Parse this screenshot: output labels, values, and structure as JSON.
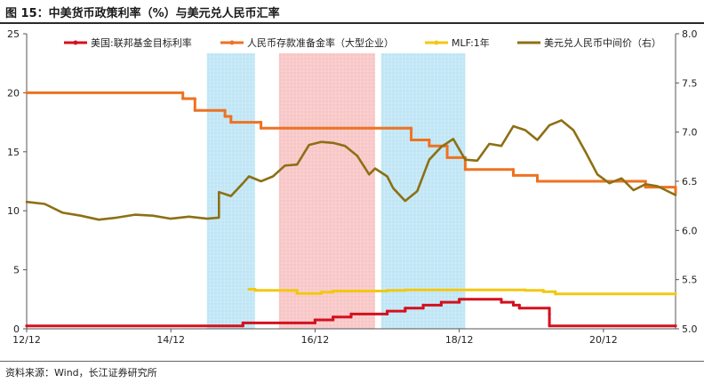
{
  "figure": {
    "title": "图 15：中美货币政策利率（%）与美元兑人民币汇率",
    "source": "资料来源：Wind，长江证券研究所"
  },
  "chart_data": {
    "type": "line",
    "x_tick_labels": [
      "12/12",
      "14/12",
      "16/12",
      "18/12",
      "20/12"
    ],
    "x_tick_dates": [
      "2012-12",
      "2014-12",
      "2016-12",
      "2018-12",
      "2020-12"
    ],
    "x_range": [
      "2012-12",
      "2021-12"
    ],
    "y_left": {
      "ylim": [
        0,
        25
      ],
      "ticks": [
        "0",
        "5",
        "10",
        "15",
        "20",
        "25"
      ]
    },
    "y_right": {
      "ylim": [
        5.0,
        8.0
      ],
      "ticks": [
        "5.0",
        "5.5",
        "6.0",
        "6.5",
        "7.0",
        "7.5",
        "8.0"
      ]
    },
    "legend_position": "top",
    "grid": false,
    "shaded_periods": [
      {
        "start": "2015-06",
        "end": "2016-02",
        "color": "#a9dcf2"
      },
      {
        "start": "2016-06",
        "end": "2017-10",
        "color": "#f6b2b2"
      },
      {
        "start": "2017-11",
        "end": "2019-01",
        "color": "#a9dcf2"
      }
    ],
    "series": [
      {
        "name": "美国:联邦基金目标利率",
        "color": "#d4101e",
        "axis": "left",
        "step": true,
        "points": [
          [
            "2012-12",
            0.25
          ],
          [
            "2015-12",
            0.25
          ],
          [
            "2015-12",
            0.5
          ],
          [
            "2016-12",
            0.5
          ],
          [
            "2016-12",
            0.75
          ],
          [
            "2017-03",
            0.75
          ],
          [
            "2017-03",
            1.0
          ],
          [
            "2017-06",
            1.0
          ],
          [
            "2017-06",
            1.25
          ],
          [
            "2017-12",
            1.25
          ],
          [
            "2017-12",
            1.5
          ],
          [
            "2018-03",
            1.5
          ],
          [
            "2018-03",
            1.75
          ],
          [
            "2018-06",
            1.75
          ],
          [
            "2018-06",
            2.0
          ],
          [
            "2018-09",
            2.0
          ],
          [
            "2018-09",
            2.25
          ],
          [
            "2018-12",
            2.25
          ],
          [
            "2018-12",
            2.5
          ],
          [
            "2019-07",
            2.5
          ],
          [
            "2019-07",
            2.25
          ],
          [
            "2019-09",
            2.25
          ],
          [
            "2019-09",
            2.0
          ],
          [
            "2019-10",
            2.0
          ],
          [
            "2019-10",
            1.75
          ],
          [
            "2020-03",
            1.75
          ],
          [
            "2020-03",
            1.25
          ],
          [
            "2020-03",
            0.25
          ],
          [
            "2021-12",
            0.25
          ]
        ]
      },
      {
        "name": "人民币存款准备金率（大型企业）",
        "color": "#ee7221",
        "axis": "left",
        "step": true,
        "points": [
          [
            "2012-12",
            20.0
          ],
          [
            "2015-02",
            20.0
          ],
          [
            "2015-02",
            19.5
          ],
          [
            "2015-04",
            19.5
          ],
          [
            "2015-04",
            18.5
          ],
          [
            "2015-09",
            18.5
          ],
          [
            "2015-09",
            18.0
          ],
          [
            "2015-10",
            18.0
          ],
          [
            "2015-10",
            17.5
          ],
          [
            "2016-03",
            17.5
          ],
          [
            "2016-03",
            17.0
          ],
          [
            "2018-04",
            17.0
          ],
          [
            "2018-04",
            16.0
          ],
          [
            "2018-07",
            16.0
          ],
          [
            "2018-07",
            15.5
          ],
          [
            "2018-10",
            15.5
          ],
          [
            "2018-10",
            14.5
          ],
          [
            "2019-01",
            14.5
          ],
          [
            "2019-01",
            13.5
          ],
          [
            "2019-09",
            13.5
          ],
          [
            "2019-09",
            13.0
          ],
          [
            "2020-01",
            13.0
          ],
          [
            "2020-01",
            12.5
          ],
          [
            "2021-07",
            12.5
          ],
          [
            "2021-07",
            12.0
          ],
          [
            "2021-12",
            12.0
          ],
          [
            "2021-12",
            11.5
          ]
        ]
      },
      {
        "name": "MLF:1年",
        "color": "#f2c811",
        "axis": "left",
        "step": true,
        "points": [
          [
            "2016-01",
            3.35
          ],
          [
            "2016-02",
            3.35
          ],
          [
            "2016-02",
            3.25
          ],
          [
            "2016-09",
            3.25
          ],
          [
            "2016-09",
            3.0
          ],
          [
            "2017-01",
            3.0
          ],
          [
            "2017-01",
            3.1
          ],
          [
            "2017-03",
            3.1
          ],
          [
            "2017-03",
            3.2
          ],
          [
            "2017-12",
            3.2
          ],
          [
            "2017-12",
            3.25
          ],
          [
            "2018-03",
            3.25
          ],
          [
            "2018-03",
            3.3
          ],
          [
            "2019-11",
            3.3
          ],
          [
            "2019-11",
            3.25
          ],
          [
            "2020-02",
            3.25
          ],
          [
            "2020-02",
            3.15
          ],
          [
            "2020-04",
            3.15
          ],
          [
            "2020-04",
            2.95
          ],
          [
            "2021-12",
            2.95
          ]
        ]
      },
      {
        "name": "美元兑人民币中间价（右）",
        "color": "#8c7014",
        "axis": "right",
        "step": false,
        "points": [
          [
            "2012-12",
            6.29
          ],
          [
            "2013-03",
            6.27
          ],
          [
            "2013-06",
            6.18
          ],
          [
            "2013-09",
            6.15
          ],
          [
            "2013-12",
            6.11
          ],
          [
            "2014-03",
            6.13
          ],
          [
            "2014-06",
            6.16
          ],
          [
            "2014-09",
            6.15
          ],
          [
            "2014-12",
            6.12
          ],
          [
            "2015-03",
            6.14
          ],
          [
            "2015-06",
            6.12
          ],
          [
            "2015-08",
            6.13
          ],
          [
            "2015-08",
            6.39
          ],
          [
            "2015-10",
            6.35
          ],
          [
            "2015-12",
            6.48
          ],
          [
            "2016-01",
            6.55
          ],
          [
            "2016-03",
            6.5
          ],
          [
            "2016-05",
            6.55
          ],
          [
            "2016-07",
            6.66
          ],
          [
            "2016-09",
            6.67
          ],
          [
            "2016-11",
            6.87
          ],
          [
            "2017-01",
            6.9
          ],
          [
            "2017-03",
            6.89
          ],
          [
            "2017-05",
            6.86
          ],
          [
            "2017-07",
            6.76
          ],
          [
            "2017-09",
            6.57
          ],
          [
            "2017-10",
            6.63
          ],
          [
            "2017-12",
            6.55
          ],
          [
            "2018-01",
            6.43
          ],
          [
            "2018-03",
            6.3
          ],
          [
            "2018-05",
            6.4
          ],
          [
            "2018-07",
            6.72
          ],
          [
            "2018-09",
            6.85
          ],
          [
            "2018-11",
            6.93
          ],
          [
            "2019-01",
            6.72
          ],
          [
            "2019-03",
            6.71
          ],
          [
            "2019-05",
            6.88
          ],
          [
            "2019-07",
            6.86
          ],
          [
            "2019-09",
            7.06
          ],
          [
            "2019-11",
            7.02
          ],
          [
            "2020-01",
            6.92
          ],
          [
            "2020-03",
            7.07
          ],
          [
            "2020-05",
            7.12
          ],
          [
            "2020-07",
            7.02
          ],
          [
            "2020-09",
            6.8
          ],
          [
            "2020-11",
            6.57
          ],
          [
            "2021-01",
            6.48
          ],
          [
            "2021-03",
            6.53
          ],
          [
            "2021-05",
            6.41
          ],
          [
            "2021-07",
            6.47
          ],
          [
            "2021-09",
            6.45
          ],
          [
            "2021-12",
            6.36
          ]
        ]
      }
    ]
  }
}
